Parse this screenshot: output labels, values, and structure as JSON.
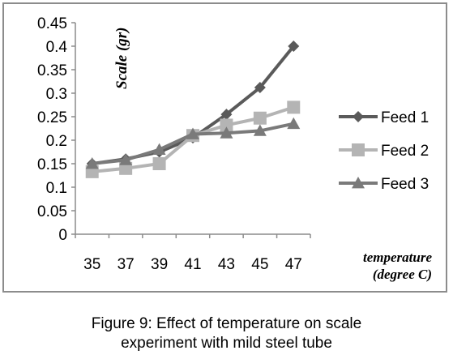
{
  "chart_data": {
    "type": "line",
    "categories": [
      "35",
      "37",
      "39",
      "41",
      "43",
      "45",
      "47"
    ],
    "series": [
      {
        "name": "Feed 1",
        "values": [
          0.15,
          0.16,
          0.175,
          0.205,
          0.255,
          0.312,
          0.4
        ],
        "color": "#5a5a5a",
        "marker": "diamond"
      },
      {
        "name": "Feed 2",
        "values": [
          0.133,
          0.14,
          0.15,
          0.21,
          0.232,
          0.247,
          0.27
        ],
        "color": "#b4b4b4",
        "marker": "square"
      },
      {
        "name": "Feed 3",
        "values": [
          0.15,
          0.158,
          0.18,
          0.213,
          0.215,
          0.22,
          0.235
        ],
        "color": "#7a7a7a",
        "marker": "triangle"
      }
    ],
    "y_ticks": [
      "0",
      "0.05",
      "0.1",
      "0.15",
      "0.2",
      "0.25",
      "0.3",
      "0.35",
      "0.4",
      "0.45"
    ],
    "ylim": [
      0,
      0.45
    ],
    "ylabel": "Scale (gr)",
    "xlabel_line1": "temperature",
    "xlabel_line2": "(degree C)",
    "legend_position": "right",
    "grid": false
  },
  "caption": {
    "line1": "Figure 9: Effect of temperature on scale",
    "line2": "experiment with mild steel tube"
  }
}
